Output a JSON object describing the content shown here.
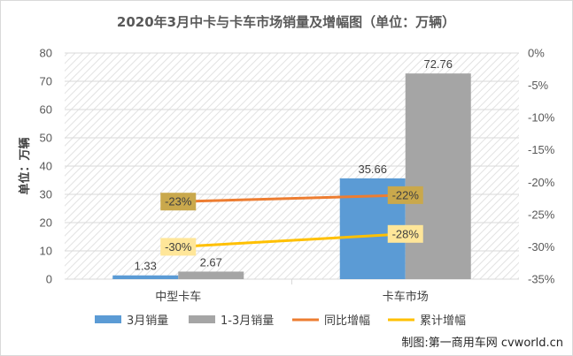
{
  "chart_data": {
    "type": "bar",
    "title": "2020年3月中卡与卡车市场销量及增幅图（单位：万辆）",
    "ylabel": "单位：万辆",
    "categories": [
      "中型卡车",
      "卡车市场"
    ],
    "ylim": [
      0,
      80
    ],
    "y_ticks": [
      "0",
      "10",
      "20",
      "30",
      "40",
      "50",
      "60",
      "70",
      "80"
    ],
    "y2lim": [
      -0.35,
      0
    ],
    "y2_ticks": [
      "0%",
      "-5%",
      "-10%",
      "-15%",
      "-20%",
      "-25%",
      "-30%",
      "-35%"
    ],
    "series": [
      {
        "name": "3月销量",
        "kind": "bar",
        "axis": "left",
        "color": "#5b9bd5",
        "values": [
          1.33,
          35.66
        ],
        "labels": [
          "1.33",
          "35.66"
        ]
      },
      {
        "name": "1-3月销量",
        "kind": "bar",
        "axis": "left",
        "color": "#a5a5a5",
        "values": [
          2.67,
          72.76
        ],
        "labels": [
          "2.67",
          "72.76"
        ]
      },
      {
        "name": "同比增幅",
        "kind": "line",
        "axis": "right",
        "color": "#ed7d31",
        "values": [
          -0.23,
          -0.22
        ],
        "labels": [
          "-23%",
          "-22%"
        ],
        "label_bg": "#c9a84c"
      },
      {
        "name": "累计增幅",
        "kind": "line",
        "axis": "right",
        "color": "#ffc000",
        "values": [
          -0.3,
          -0.28
        ],
        "labels": [
          "-30%",
          "-28%"
        ],
        "label_bg": "#ffe699"
      }
    ],
    "grid": true,
    "legend": "bottom",
    "credit": "制图:第一商用车网 cvworld.cn"
  }
}
